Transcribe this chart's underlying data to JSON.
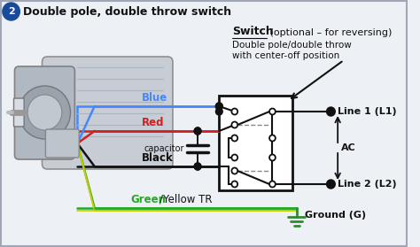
{
  "title": "Double pole, double throw switch",
  "title_number": "2",
  "bg_color": "#edf0f5",
  "border_color": "#a0a8b8",
  "switch_label_bold": "Switch",
  "switch_label_normal": " (optional – for reversing)",
  "switch_sublabel1": "Double pole/double throw",
  "switch_sublabel2": "with center-off position",
  "wire_blue_label": "Blue",
  "wire_red_label": "Red",
  "wire_black_label": "Black",
  "wire_green_label": "Green",
  "wire_yellow_label": "/Yellow TR",
  "capacitor_label": "capacitor",
  "line1_label": "Line 1 (L1)",
  "line2_label": "Line 2 (L2)",
  "ac_label": "AC",
  "ground_label": "Ground (G)",
  "wire_blue_color": "#4488ff",
  "wire_red_color": "#cc2222",
  "wire_black_color": "#111111",
  "wire_green_color": "#22aa22",
  "wire_yellow_color": "#cccc00",
  "switch_box_color": "#111111",
  "dot_color": "#111111",
  "dashed_color": "#888888",
  "text_dark": "#111111",
  "text_blue": "#4488ff",
  "text_red": "#cc2222",
  "text_green": "#22aa22",
  "ground_color": "#338833",
  "title_circle_color": "#1a4a9a"
}
